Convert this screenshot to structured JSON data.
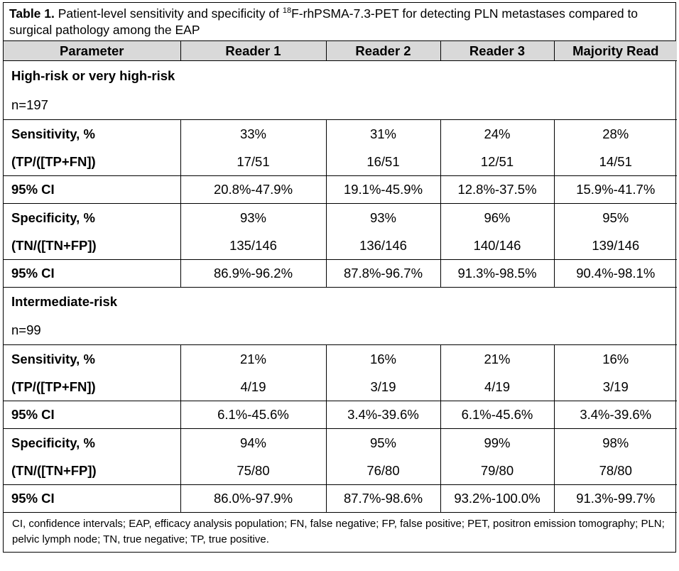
{
  "caption": {
    "label": "Table 1.",
    "text_before_sup": " Patient-level sensitivity and specificity of ",
    "sup": "18",
    "text_after_sup": "F-rhPSMA-7.3-PET for detecting PLN metastases compared to surgical pathology among the EAP"
  },
  "headers": [
    "Parameter",
    "Reader 1",
    "Reader 2",
    "Reader 3",
    "Majority Read"
  ],
  "groups": [
    {
      "title": "High-risk or very high-risk",
      "n": "n=197",
      "sens_label": "Sensitivity, %",
      "sens": [
        "33%",
        "31%",
        "24%",
        "28%"
      ],
      "sens_frac_label": "(TP/([TP+FN])",
      "sens_frac": [
        "17/51",
        "16/51",
        "12/51",
        "14/51"
      ],
      "sens_ci_label": "95% CI",
      "sens_ci": [
        "20.8%-47.9%",
        "19.1%-45.9%",
        "12.8%-37.5%",
        "15.9%-41.7%"
      ],
      "spec_label": "Specificity, %",
      "spec": [
        "93%",
        "93%",
        "96%",
        "95%"
      ],
      "spec_frac_label": "(TN/([TN+FP])",
      "spec_frac": [
        "135/146",
        "136/146",
        "140/146",
        "139/146"
      ],
      "spec_ci_label": "95% CI",
      "spec_ci": [
        "86.9%-96.2%",
        "87.8%-96.7%",
        "91.3%-98.5%",
        "90.4%-98.1%"
      ]
    },
    {
      "title": "Intermediate-risk",
      "n": "n=99",
      "sens_label": "Sensitivity, %",
      "sens": [
        "21%",
        "16%",
        "21%",
        "16%"
      ],
      "sens_frac_label": "(TP/([TP+FN])",
      "sens_frac": [
        "4/19",
        "3/19",
        "4/19",
        "3/19"
      ],
      "sens_ci_label": "95% CI",
      "sens_ci": [
        "6.1%-45.6%",
        "3.4%-39.6%",
        "6.1%-45.6%",
        "3.4%-39.6%"
      ],
      "spec_label": "Specificity, %",
      "spec": [
        "94%",
        "95%",
        "99%",
        "98%"
      ],
      "spec_frac_label": "(TN/([TN+FP])",
      "spec_frac": [
        "75/80",
        "76/80",
        "79/80",
        "78/80"
      ],
      "spec_ci_label": "95% CI",
      "spec_ci": [
        "86.0%-97.9%",
        "87.7%-98.6%",
        "93.2%-100.0%",
        "91.3%-99.7%"
      ]
    }
  ],
  "footnote": "CI, confidence intervals; EAP, efficacy analysis population; FN, false negative; FP, false positive; PET, positron emission tomography; PLN; pelvic lymph node; TN, true negative; TP, true positive."
}
